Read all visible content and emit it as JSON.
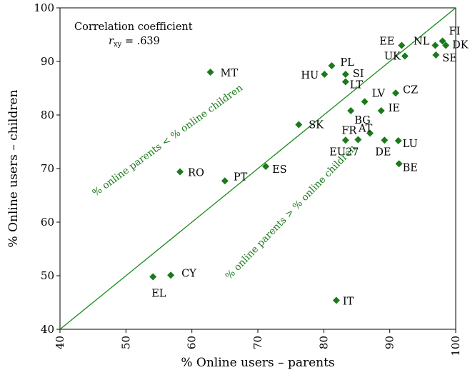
{
  "chart_data": {
    "type": "scatter",
    "xlabel": "% Online users – parents",
    "ylabel": "% Online users – children",
    "xlim": [
      40,
      100
    ],
    "ylim": [
      40,
      100
    ],
    "x_ticks": [
      "40",
      "50",
      "60",
      "70",
      "80",
      "90",
      "100"
    ],
    "y_ticks": [
      "40",
      "50",
      "60",
      "70",
      "80",
      "90",
      "100"
    ],
    "grid": false,
    "marker_color": "#1a7a1a",
    "line_color": "#1a8a1a",
    "reference_line": {
      "from": [
        40,
        40
      ],
      "to": [
        100,
        100
      ]
    },
    "annotation": {
      "line1": "Correlation coefficient",
      "line2_prefix": "r",
      "line2_sub": "xy",
      "line2_value": " = .639"
    },
    "region_labels": {
      "upper": "% online parents < % online children",
      "lower": "% online parents > % online children"
    },
    "points": [
      {
        "label": "FI",
        "x": 98.0,
        "y": 93.8
      },
      {
        "label": "DK",
        "x": 98.5,
        "y": 93.0
      },
      {
        "label": "NL",
        "x": 96.9,
        "y": 93.0
      },
      {
        "label": "EE",
        "x": 91.8,
        "y": 93.0
      },
      {
        "label": "UK",
        "x": 92.3,
        "y": 91.0
      },
      {
        "label": "SE",
        "x": 97.0,
        "y": 91.2
      },
      {
        "label": "PL",
        "x": 81.2,
        "y": 89.2
      },
      {
        "label": "HU",
        "x": 80.1,
        "y": 87.6
      },
      {
        "label": "SI",
        "x": 83.3,
        "y": 87.6
      },
      {
        "label": "LT",
        "x": 83.3,
        "y": 86.2
      },
      {
        "label": "MT",
        "x": 62.8,
        "y": 88.0
      },
      {
        "label": "CZ",
        "x": 90.9,
        "y": 84.1
      },
      {
        "label": "LV",
        "x": 86.2,
        "y": 82.5
      },
      {
        "label": "IE",
        "x": 88.7,
        "y": 80.8
      },
      {
        "label": "BG",
        "x": 84.1,
        "y": 80.8
      },
      {
        "label": "SK",
        "x": 76.2,
        "y": 78.2
      },
      {
        "label": "AT",
        "x": 87.0,
        "y": 76.6
      },
      {
        "label": "FR",
        "x": 85.2,
        "y": 75.4
      },
      {
        "label": "EU27",
        "x": 83.3,
        "y": 75.3,
        "highlight": true
      },
      {
        "label": "DE",
        "x": 89.2,
        "y": 75.3
      },
      {
        "label": "LU",
        "x": 91.3,
        "y": 75.2
      },
      {
        "label": "BE",
        "x": 91.4,
        "y": 70.9
      },
      {
        "label": "ES",
        "x": 71.2,
        "y": 70.4
      },
      {
        "label": "RO",
        "x": 58.2,
        "y": 69.4
      },
      {
        "label": "PT",
        "x": 65.0,
        "y": 67.7
      },
      {
        "label": "CY",
        "x": 56.8,
        "y": 50.1
      },
      {
        "label": "EL",
        "x": 54.1,
        "y": 49.8
      },
      {
        "label": "IT",
        "x": 81.9,
        "y": 45.4
      }
    ]
  }
}
